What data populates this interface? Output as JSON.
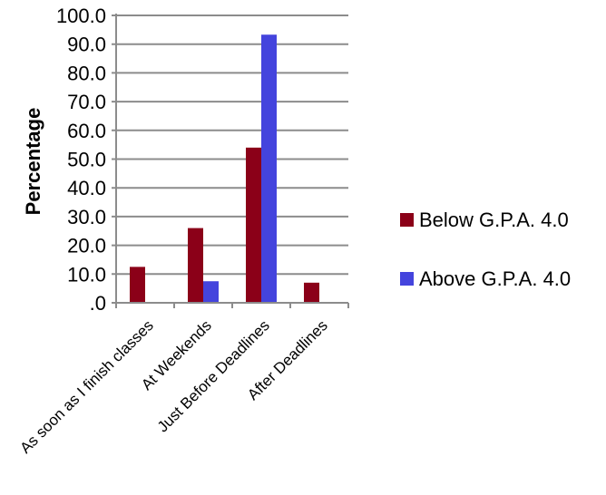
{
  "chart_data": {
    "type": "bar",
    "title": "",
    "xlabel": "",
    "ylabel": "Percentage",
    "ylim": [
      0,
      100
    ],
    "yticks": [
      ".0",
      "10.0",
      "20.0",
      "30.0",
      "40.0",
      "50.0",
      "60.0",
      "70.0",
      "80.0",
      "90.0",
      "100.0"
    ],
    "ytick_values": [
      0,
      10,
      20,
      30,
      40,
      50,
      60,
      70,
      80,
      90,
      100
    ],
    "grid": true,
    "legend_position": "right",
    "categories": [
      "As soon as I finish classes",
      "At Weekends",
      "Just Before Deadlines",
      "After Deadlines"
    ],
    "series": [
      {
        "name": "Below G.P.A. 4.0",
        "color": "#8b0018",
        "values": [
          12.5,
          26.0,
          54.0,
          7.0
        ]
      },
      {
        "name": "Above G.P.A. 4.0",
        "color": "#4444dd",
        "values": [
          0,
          7.5,
          93.3,
          0
        ]
      }
    ]
  }
}
